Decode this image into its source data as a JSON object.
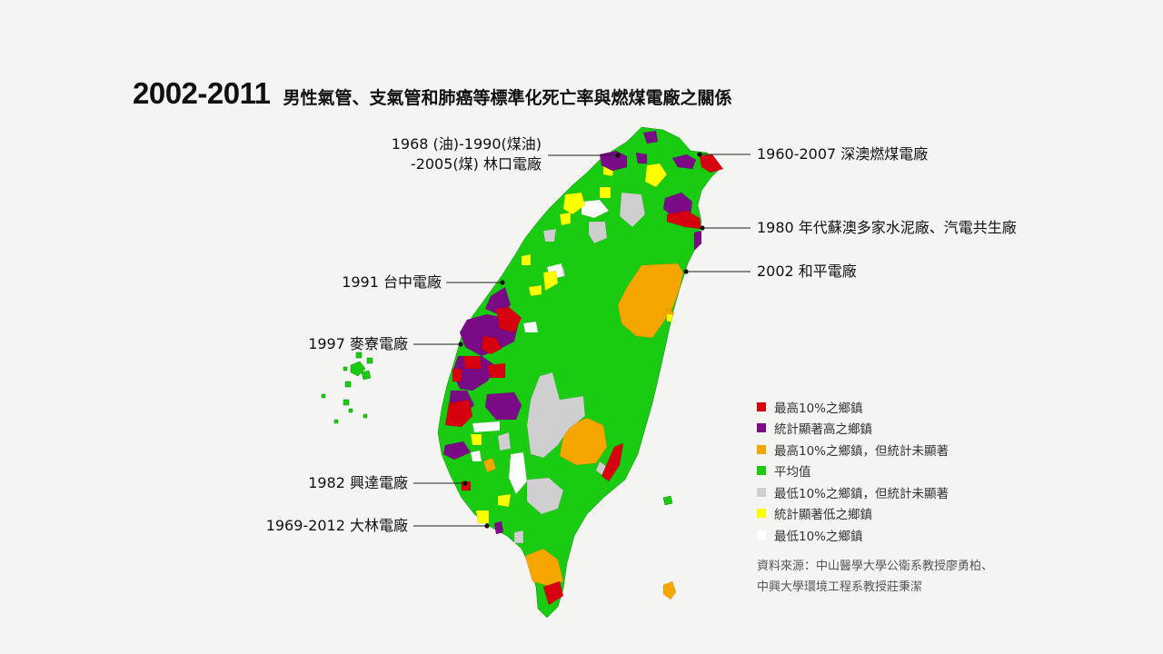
{
  "title": {
    "year": "2002-2011",
    "text": "男性氣管、支氣管和肺癌等標準化死亡率與燃煤電廠之關係"
  },
  "colors": {
    "top10": "#d7000f",
    "sig_high": "#7a0a85",
    "top10_ns": "#f5a700",
    "average": "#19cc12",
    "bottom10_ns": "#cfcfcf",
    "sig_low": "#ffff00",
    "bottom10": "#ffffff",
    "boundary": "#0e8a0a"
  },
  "plants": [
    {
      "id": "linkou",
      "lines": [
        "1968 (油)-1990(煤油)",
        "-2005(煤) 林口電廠"
      ]
    },
    {
      "id": "shenao",
      "lines": [
        "1960-2007 深澳燃煤電廠"
      ]
    },
    {
      "id": "suao",
      "lines": [
        "1980 年代蘇澳多家水泥廠、汽電共生廠"
      ]
    },
    {
      "id": "hoping",
      "lines": [
        "2002 和平電廠"
      ]
    },
    {
      "id": "taichung",
      "lines": [
        "1991 台中電廠"
      ]
    },
    {
      "id": "mailiao",
      "lines": [
        "1997 麥寮電廠"
      ]
    },
    {
      "id": "hsingta",
      "lines": [
        "1982 興達電廠"
      ]
    },
    {
      "id": "talin",
      "lines": [
        "1969-2012 大林電廠"
      ]
    }
  ],
  "legend": [
    {
      "color": "#d7000f",
      "label": "最高10%之鄉鎮"
    },
    {
      "color": "#7a0a85",
      "label": "統計顯著高之鄉鎮"
    },
    {
      "color": "#f5a700",
      "label": "最高10%之鄉鎮，但統計未顯著"
    },
    {
      "color": "#19cc12",
      "label": "平均值"
    },
    {
      "color": "#cfcfcf",
      "label": "最低10%之鄉鎮，但統計未顯著"
    },
    {
      "color": "#ffff00",
      "label": "統計顯著低之鄉鎮"
    },
    {
      "color": "#ffffff",
      "label": "最低10%之鄉鎮"
    }
  ],
  "source": {
    "line1": "資料來源：中山醫學大學公衛系教授廖勇柏、",
    "line2": "中興大學環境工程系教授莊秉潔"
  }
}
